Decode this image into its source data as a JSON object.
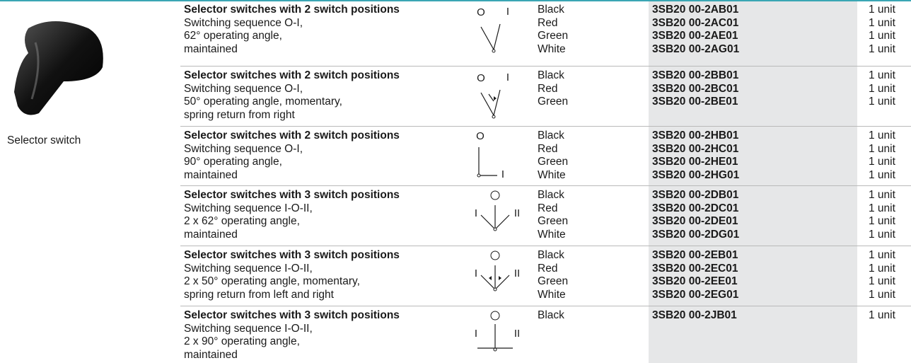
{
  "image_caption": "Selector switch",
  "rows": [
    {
      "title": "Selector switches with 2 switch positions",
      "lines": [
        "Switching sequence O-I,",
        "62° operating angle,",
        "maintained"
      ],
      "symbol_labels": [
        "O",
        "I"
      ],
      "colors": [
        "Black",
        "Red",
        "Green",
        "White"
      ],
      "order_numbers": [
        "3SB20 00-2AB01",
        "3SB20 00-2AC01",
        "3SB20 00-2AE01",
        "3SB20 00-2AG01"
      ],
      "units": [
        "1 unit",
        "1 unit",
        "1 unit",
        "1 unit"
      ]
    },
    {
      "title": "Selector switches with 2 switch positions",
      "lines": [
        "Switching sequence O-I,",
        "50° operating angle, momentary,",
        "spring return from right"
      ],
      "symbol_labels": [
        "O",
        "I"
      ],
      "colors": [
        "Black",
        "Red",
        "Green"
      ],
      "order_numbers": [
        "3SB20 00-2BB01",
        "3SB20 00-2BC01",
        "3SB20 00-2BE01"
      ],
      "units": [
        "1 unit",
        "1 unit",
        "1 unit"
      ]
    },
    {
      "title": "Selector switches with 2 switch positions",
      "lines": [
        "Switching sequence O-I,",
        "90° operating angle,",
        "maintained"
      ],
      "symbol_labels": [
        "O",
        "I"
      ],
      "colors": [
        "Black",
        "Red",
        "Green",
        "White"
      ],
      "order_numbers": [
        "3SB20 00-2HB01",
        "3SB20 00-2HC01",
        "3SB20 00-2HE01",
        "3SB20 00-2HG01"
      ],
      "units": [
        "1 unit",
        "1 unit",
        "1 unit",
        "1 unit"
      ]
    },
    {
      "title": "Selector switches with 3 switch positions",
      "lines": [
        "Switching sequence I-O-II,",
        "2 x 62° operating angle,",
        "maintained"
      ],
      "symbol_labels": [
        "I",
        "II"
      ],
      "colors": [
        "Black",
        "Red",
        "Green",
        "White"
      ],
      "order_numbers": [
        "3SB20 00-2DB01",
        "3SB20 00-2DC01",
        "3SB20 00-2DE01",
        "3SB20 00-2DG01"
      ],
      "units": [
        "1 unit",
        "1 unit",
        "1 unit",
        "1 unit"
      ]
    },
    {
      "title": "Selector switches with 3 switch positions",
      "lines": [
        "Switching sequence I-O-II,",
        "2 x 50° operating angle, momentary,",
        "spring return from left and right"
      ],
      "symbol_labels": [
        "I",
        "II"
      ],
      "colors": [
        "Black",
        "Red",
        "Green",
        "White"
      ],
      "order_numbers": [
        "3SB20 00-2EB01",
        "3SB20 00-2EC01",
        "3SB20 00-2EE01",
        "3SB20 00-2EG01"
      ],
      "units": [
        "1 unit",
        "1 unit",
        "1 unit",
        "1 unit"
      ]
    },
    {
      "title": "Selector switches with 3 switch positions",
      "lines": [
        "Switching sequence I-O-II,",
        "2 x 90° operating angle,",
        "maintained"
      ],
      "symbol_labels": [
        "I",
        "II"
      ],
      "colors": [
        "Black"
      ],
      "order_numbers": [
        "3SB20 00-2JB01"
      ],
      "units": [
        "1 unit"
      ]
    }
  ]
}
